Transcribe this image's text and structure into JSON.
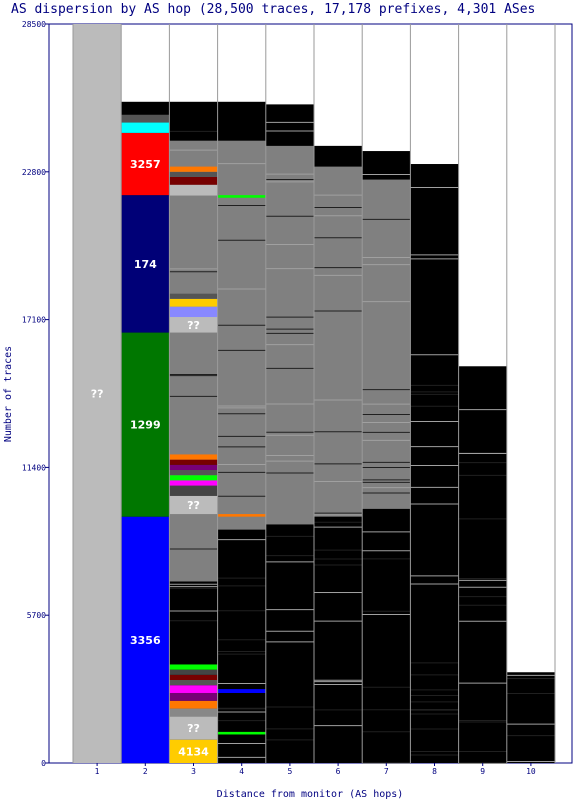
{
  "chart_data": {
    "type": "bar",
    "title": "AS dispersion by AS hop (28,500 traces, 17,178 prefixes, 4,301 ASes",
    "xlabel": "Distance from monitor (AS hops)",
    "ylabel": "Number of traces",
    "ylim": [
      0,
      28500
    ],
    "y_ticks": [
      "0",
      "5700",
      "11400",
      "17100",
      "22800",
      "28500"
    ],
    "categories": [
      "1",
      "2",
      "3",
      "4",
      "5",
      "6",
      "7",
      "8",
      "9",
      "10"
    ],
    "column_tops": [
      28500,
      25500,
      25500,
      25500,
      25400,
      23800,
      23600,
      23100,
      15300,
      3500
    ],
    "column_base_color": "#000000",
    "grey_blocks": [
      {
        "hop": "3",
        "from": 7000,
        "to": 24000
      },
      {
        "hop": "4",
        "from": 9000,
        "to": 24000
      },
      {
        "hop": "5",
        "from": 9200,
        "to": 23800
      },
      {
        "hop": "6",
        "from": 9500,
        "to": 23000
      },
      {
        "hop": "7",
        "from": 9800,
        "to": 22500
      }
    ],
    "segments": [
      {
        "hop": "1",
        "from": 0,
        "to": 28500,
        "color": "#bbbbbb",
        "label": "??"
      },
      {
        "hop": "2",
        "from": 0,
        "to": 9500,
        "color": "#0000ff",
        "label": "3356"
      },
      {
        "hop": "2",
        "from": 9500,
        "to": 16600,
        "color": "#007700",
        "label": "1299"
      },
      {
        "hop": "2",
        "from": 16600,
        "to": 21900,
        "color": "#000077",
        "label": "174"
      },
      {
        "hop": "2",
        "from": 21900,
        "to": 24300,
        "color": "#ff0000",
        "label": "3257"
      },
      {
        "hop": "2",
        "from": 24300,
        "to": 24700,
        "color": "#00ffff",
        "label": ""
      },
      {
        "hop": "2",
        "from": 24700,
        "to": 25000,
        "color": "#555555",
        "label": ""
      },
      {
        "hop": "3",
        "from": 0,
        "to": 900,
        "color": "#ffcc00",
        "label": "4134"
      },
      {
        "hop": "3",
        "from": 900,
        "to": 1800,
        "color": "#bbbbbb",
        "label": "??"
      },
      {
        "hop": "3",
        "from": 1800,
        "to": 2100,
        "color": "#888888",
        "label": ""
      },
      {
        "hop": "3",
        "from": 2100,
        "to": 2400,
        "color": "#ff7700",
        "label": ""
      },
      {
        "hop": "3",
        "from": 2400,
        "to": 2700,
        "color": "#770077",
        "label": ""
      },
      {
        "hop": "3",
        "from": 2700,
        "to": 3000,
        "color": "#ff00ff",
        "label": ""
      },
      {
        "hop": "3",
        "from": 3000,
        "to": 3200,
        "color": "#555555",
        "label": ""
      },
      {
        "hop": "3",
        "from": 3200,
        "to": 3400,
        "color": "#770000",
        "label": ""
      },
      {
        "hop": "3",
        "from": 3400,
        "to": 3600,
        "color": "#444444",
        "label": ""
      },
      {
        "hop": "3",
        "from": 3600,
        "to": 3800,
        "color": "#00ff00",
        "label": ""
      },
      {
        "hop": "3",
        "from": 9600,
        "to": 10300,
        "color": "#bbbbbb",
        "label": "??"
      },
      {
        "hop": "3",
        "from": 10300,
        "to": 10700,
        "color": "#444444",
        "label": ""
      },
      {
        "hop": "3",
        "from": 10700,
        "to": 10900,
        "color": "#ff00ff",
        "label": ""
      },
      {
        "hop": "3",
        "from": 10900,
        "to": 11100,
        "color": "#00ff00",
        "label": ""
      },
      {
        "hop": "3",
        "from": 11100,
        "to": 11300,
        "color": "#555555",
        "label": ""
      },
      {
        "hop": "3",
        "from": 11300,
        "to": 11500,
        "color": "#770077",
        "label": ""
      },
      {
        "hop": "3",
        "from": 11500,
        "to": 11700,
        "color": "#770000",
        "label": ""
      },
      {
        "hop": "3",
        "from": 11700,
        "to": 11900,
        "color": "#ff7700",
        "label": ""
      },
      {
        "hop": "3",
        "from": 16600,
        "to": 17200,
        "color": "#bbbbbb",
        "label": "??"
      },
      {
        "hop": "3",
        "from": 17200,
        "to": 17600,
        "color": "#8888ff",
        "label": ""
      },
      {
        "hop": "3",
        "from": 17600,
        "to": 17900,
        "color": "#ffcc00",
        "label": ""
      },
      {
        "hop": "3",
        "from": 17900,
        "to": 18100,
        "color": "#555555",
        "label": ""
      },
      {
        "hop": "3",
        "from": 21900,
        "to": 22300,
        "color": "#bbbbbb",
        "label": ""
      },
      {
        "hop": "3",
        "from": 22300,
        "to": 22600,
        "color": "#770000",
        "label": ""
      },
      {
        "hop": "3",
        "from": 22600,
        "to": 22800,
        "color": "#555555",
        "label": ""
      },
      {
        "hop": "3",
        "from": 22800,
        "to": 23000,
        "color": "#ff7700",
        "label": ""
      },
      {
        "hop": "4",
        "from": 2700,
        "to": 2850,
        "color": "#0000ff",
        "label": ""
      },
      {
        "hop": "4",
        "from": 1100,
        "to": 1200,
        "color": "#00ff00",
        "label": ""
      },
      {
        "hop": "4",
        "from": 9500,
        "to": 9600,
        "color": "#ff7700",
        "label": ""
      },
      {
        "hop": "4",
        "from": 21800,
        "to": 21900,
        "color": "#00ff00",
        "label": ""
      }
    ]
  }
}
